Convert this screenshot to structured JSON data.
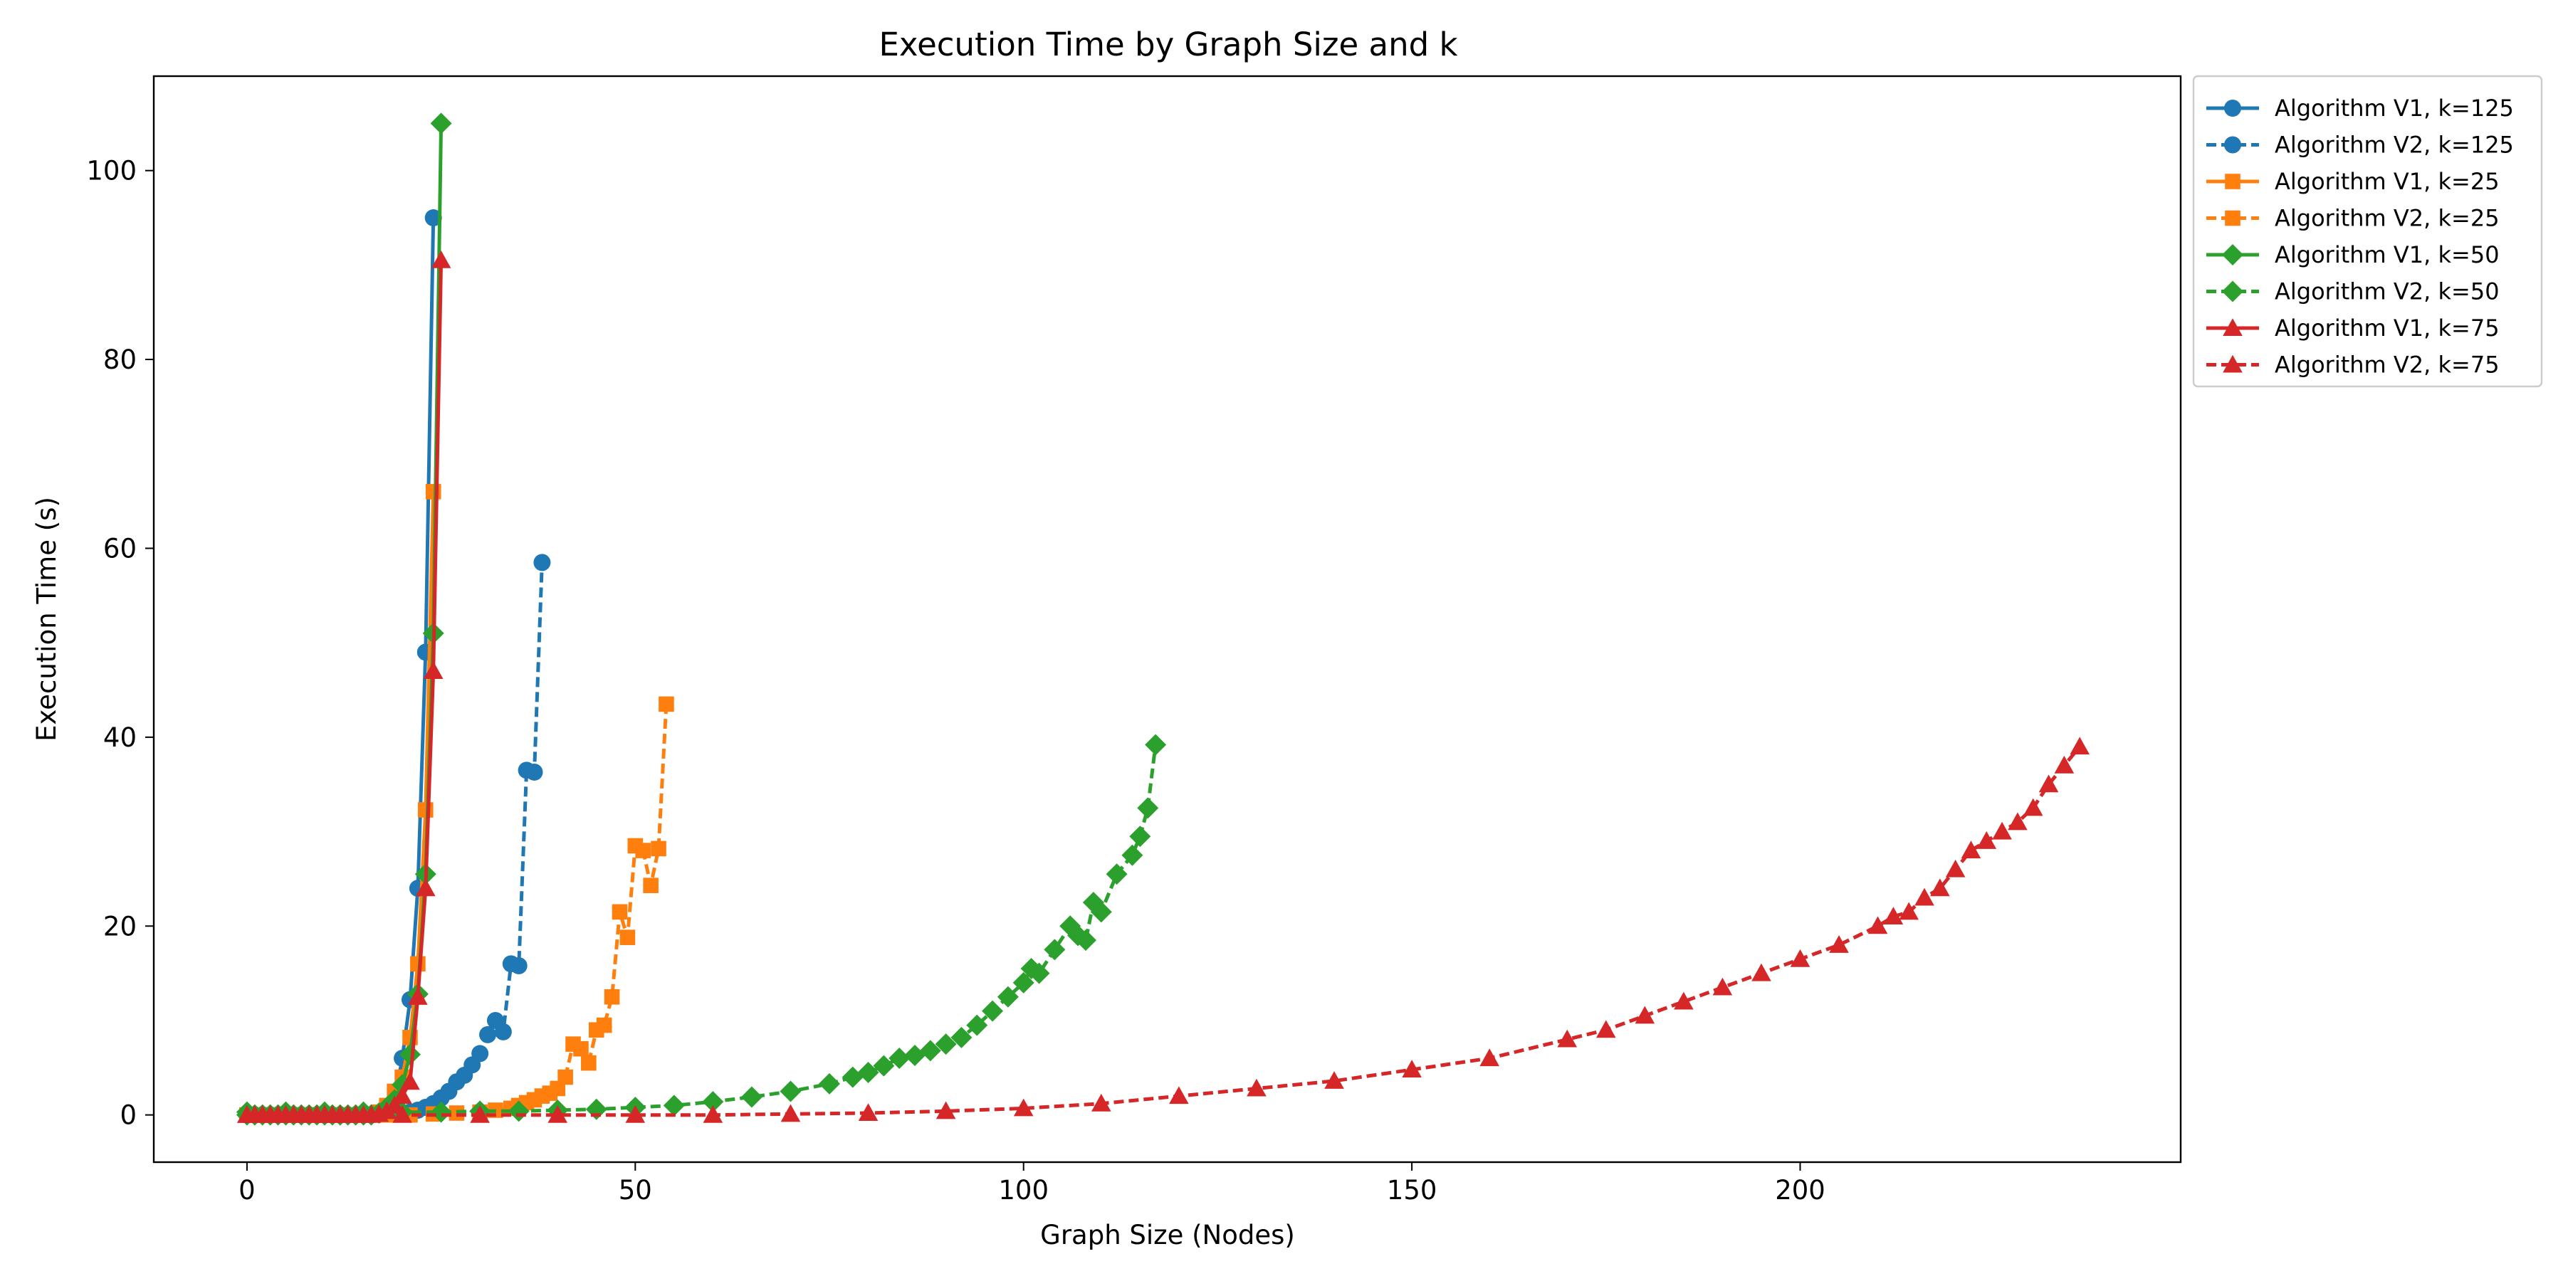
{
  "chart_data": {
    "type": "line",
    "title": "Execution Time by Graph Size and k",
    "xlabel": "Graph Size (Nodes)",
    "ylabel": "Execution Time (s)",
    "xlim": [
      -12,
      249
    ],
    "ylim": [
      -5,
      110
    ],
    "xticks": [
      0,
      50,
      100,
      150,
      200
    ],
    "yticks": [
      0,
      20,
      40,
      60,
      80,
      100
    ],
    "grid": false,
    "legend_position": "outside-top-right",
    "series": [
      {
        "name": "Algorithm V1, k=125",
        "color": "#1f77b4",
        "marker": "circle",
        "linestyle": "solid",
        "x": [
          0,
          1,
          2,
          3,
          4,
          5,
          6,
          7,
          8,
          9,
          10,
          11,
          12,
          13,
          14,
          15,
          16,
          17,
          18,
          19,
          20,
          21,
          22,
          23,
          24
        ],
        "y": [
          0,
          0,
          0,
          0,
          0,
          0,
          0,
          0,
          0,
          0,
          0,
          0,
          0,
          0,
          0,
          0,
          0,
          0.1,
          0.5,
          1.5,
          6,
          12.2,
          24,
          49,
          95
        ]
      },
      {
        "name": "Algorithm V2, k=125",
        "color": "#1f77b4",
        "marker": "circle",
        "linestyle": "dashed",
        "x": [
          0,
          2,
          4,
          6,
          8,
          10,
          12,
          14,
          16,
          18,
          20,
          21,
          22,
          23,
          24,
          25,
          26,
          27,
          28,
          29,
          30,
          31,
          32,
          33,
          34,
          35,
          36,
          37,
          38
        ],
        "y": [
          0,
          0,
          0,
          0,
          0,
          0,
          0,
          0,
          0,
          0.1,
          0.2,
          0.3,
          0.5,
          0.8,
          1.2,
          1.8,
          2.5,
          3.5,
          4.2,
          5.3,
          6.5,
          8.5,
          10,
          8.8,
          16,
          15.8,
          36.5,
          36.3,
          58.5
        ]
      },
      {
        "name": "Algorithm V1, k=25",
        "color": "#ff7f0e",
        "marker": "square",
        "linestyle": "solid",
        "x": [
          0,
          1,
          2,
          3,
          4,
          5,
          6,
          7,
          8,
          9,
          10,
          11,
          12,
          13,
          14,
          15,
          16,
          17,
          18,
          19,
          20,
          21,
          22,
          23,
          24
        ],
        "y": [
          0,
          0,
          0,
          0,
          0,
          0,
          0,
          0,
          0,
          0,
          0,
          0,
          0,
          0,
          0,
          0,
          0,
          0.3,
          1,
          2.5,
          4,
          8.2,
          16,
          32.3,
          66
        ]
      },
      {
        "name": "Algorithm V2, k=25",
        "color": "#ff7f0e",
        "marker": "square",
        "linestyle": "dashed",
        "x": [
          0,
          3,
          6,
          9,
          12,
          15,
          18,
          21,
          24,
          27,
          30,
          32,
          34,
          35,
          36,
          37,
          38,
          39,
          40,
          41,
          42,
          43,
          44,
          45,
          46,
          47,
          48,
          49,
          50,
          51,
          52,
          53,
          54
        ],
        "y": [
          0,
          0,
          0,
          0,
          0,
          0,
          0,
          0,
          0.1,
          0.2,
          0.3,
          0.5,
          0.7,
          1,
          1.3,
          1.6,
          2,
          2.3,
          2.8,
          4,
          7.5,
          7,
          5.5,
          9,
          9.5,
          12.5,
          21.5,
          18.8,
          28.5,
          28,
          24.3,
          28.2,
          43.5
        ]
      },
      {
        "name": "Algorithm V1, k=50",
        "color": "#2ca02c",
        "marker": "diamond",
        "linestyle": "solid",
        "x": [
          0,
          1,
          2,
          3,
          4,
          5,
          6,
          7,
          8,
          9,
          10,
          11,
          12,
          13,
          14,
          15,
          16,
          17,
          18,
          19,
          20,
          21,
          22,
          23,
          24,
          25
        ],
        "y": [
          0,
          0,
          0,
          0,
          0,
          0,
          0,
          0,
          0,
          0,
          0,
          0,
          0,
          0,
          0,
          0,
          0,
          0.2,
          0.8,
          1.6,
          3.2,
          6.4,
          12.8,
          25.5,
          51,
          105
        ]
      },
      {
        "name": "Algorithm V2, k=50",
        "color": "#2ca02c",
        "marker": "diamond",
        "linestyle": "dashed",
        "x": [
          0,
          5,
          10,
          15,
          20,
          25,
          30,
          35,
          40,
          45,
          50,
          55,
          60,
          65,
          70,
          75,
          78,
          80,
          82,
          84,
          86,
          88,
          90,
          92,
          94,
          96,
          98,
          100,
          101,
          102,
          104,
          106,
          107,
          108,
          109,
          110,
          112,
          114,
          115,
          116,
          117
        ],
        "y": [
          0.3,
          0.3,
          0.3,
          0.3,
          0.3,
          0.3,
          0.4,
          0.4,
          0.5,
          0.6,
          0.8,
          1,
          1.4,
          1.9,
          2.5,
          3.3,
          4,
          4.5,
          5.2,
          6,
          6.3,
          6.8,
          7.5,
          8.2,
          9.5,
          11,
          12.5,
          14,
          15.5,
          15,
          17.5,
          20,
          19,
          18.5,
          22.5,
          21.5,
          25.5,
          27.5,
          29.5,
          32.5,
          39.2
        ]
      },
      {
        "name": "Algorithm V1, k=75",
        "color": "#d62728",
        "marker": "triangle-up",
        "linestyle": "solid",
        "x": [
          0,
          1,
          2,
          3,
          4,
          5,
          6,
          7,
          8,
          9,
          10,
          11,
          12,
          13,
          14,
          15,
          16,
          17,
          18,
          19,
          20,
          21,
          22,
          23,
          24,
          25
        ],
        "y": [
          0,
          0,
          0,
          0,
          0,
          0,
          0,
          0,
          0,
          0,
          0,
          0,
          0,
          0,
          0,
          0,
          0,
          0.1,
          0.4,
          1,
          2,
          3.5,
          12.5,
          24,
          47,
          90.5
        ]
      },
      {
        "name": "Algorithm V2, k=75",
        "color": "#d62728",
        "marker": "triangle-up",
        "linestyle": "dashed",
        "x": [
          0,
          10,
          20,
          30,
          40,
          50,
          60,
          70,
          80,
          90,
          100,
          110,
          120,
          130,
          140,
          150,
          160,
          170,
          175,
          180,
          185,
          190,
          195,
          200,
          205,
          210,
          212,
          214,
          216,
          218,
          220,
          222,
          224,
          226,
          228,
          230,
          232,
          234,
          236
        ],
        "y": [
          0,
          0,
          0,
          0,
          0,
          0,
          0,
          0.1,
          0.2,
          0.4,
          0.7,
          1.2,
          2,
          2.8,
          3.6,
          4.8,
          6,
          8,
          9,
          10.5,
          12,
          13.5,
          15,
          16.5,
          18,
          20,
          21,
          21.5,
          23,
          24,
          26,
          28,
          29,
          30,
          31,
          32.5,
          35,
          37,
          39
        ]
      }
    ]
  }
}
